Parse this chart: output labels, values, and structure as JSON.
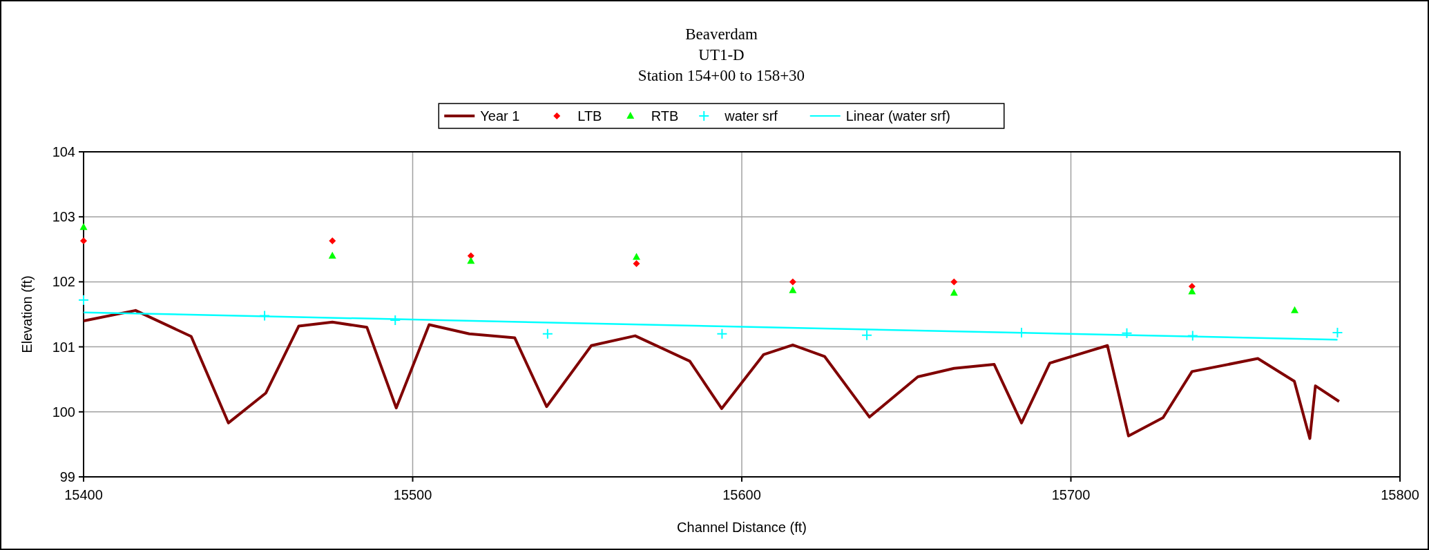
{
  "chart_data": {
    "type": "line",
    "title": "Beaverdam",
    "subtitle": "UT1-D\nStation 154+00 to 158+30",
    "xlabel": "Channel Distance (ft)",
    "ylabel": "Elevation (ft)",
    "xlim": [
      15400,
      15800
    ],
    "xticks": [
      15400,
      15500,
      15600,
      15700,
      15800
    ],
    "ylim": [
      99,
      104
    ],
    "yticks": [
      99,
      100,
      101,
      102,
      103,
      104
    ],
    "grid": true,
    "legend": "top",
    "series": [
      {
        "name": "Year 1",
        "color": "#800000",
        "marker": "none",
        "x": [
          15400,
          15415.8,
          15432.7,
          15444,
          15455.4,
          15465.4,
          15475.6,
          15486.1,
          15495,
          15505,
          15517.2,
          15531,
          15540.7,
          15554.3,
          15567.6,
          15584.2,
          15593.9,
          15606.6,
          15615.5,
          15625.2,
          15638.8,
          15653.5,
          15664.5,
          15676.7,
          15685,
          15693.6,
          15711.1,
          15717.5,
          15728,
          15736.8,
          15756.8,
          15767.9,
          15772.6,
          15774.3,
          15781.5
        ],
        "values": [
          101.4,
          101.56,
          101.16,
          99.83,
          100.29,
          101.32,
          101.38,
          101.3,
          100.06,
          101.34,
          101.2,
          101.14,
          100.08,
          101.02,
          101.17,
          100.78,
          100.05,
          100.88,
          101.03,
          100.85,
          99.92,
          100.54,
          100.67,
          100.73,
          99.83,
          100.75,
          101.02,
          99.63,
          99.91,
          100.62,
          100.82,
          100.47,
          99.59,
          100.4,
          100.16
        ]
      },
      {
        "name": "LTB",
        "type": "scatter",
        "color": "#ff0000",
        "marker": "diamond",
        "x": [
          15400,
          15475.6,
          15517.7,
          15568,
          15615.5,
          15664.5,
          15736.8
        ],
        "values": [
          102.63,
          102.63,
          102.4,
          102.28,
          102,
          102,
          101.93
        ]
      },
      {
        "name": "RTB",
        "type": "scatter",
        "color": "#00ff00",
        "marker": "triangle",
        "x": [
          15400,
          15475.6,
          15517.7,
          15568,
          15615.5,
          15664.5,
          15736.8,
          15768
        ],
        "values": [
          102.84,
          102.4,
          102.32,
          102.38,
          101.87,
          101.83,
          101.85,
          101.56
        ]
      },
      {
        "name": "water srf",
        "type": "scatter",
        "color": "#00ffff",
        "marker": "cross",
        "x": [
          15400,
          15455,
          15494.7,
          15541,
          15594,
          15638,
          15685,
          15717,
          15737,
          15781
        ],
        "values": [
          101.72,
          101.48,
          101.41,
          101.2,
          101.2,
          101.18,
          101.22,
          101.21,
          101.17,
          101.22
        ]
      },
      {
        "name": "Linear (water srf)",
        "color": "#00ffff",
        "marker": "none",
        "x": [
          15400,
          15781
        ],
        "values": [
          101.53,
          101.11
        ]
      }
    ]
  }
}
